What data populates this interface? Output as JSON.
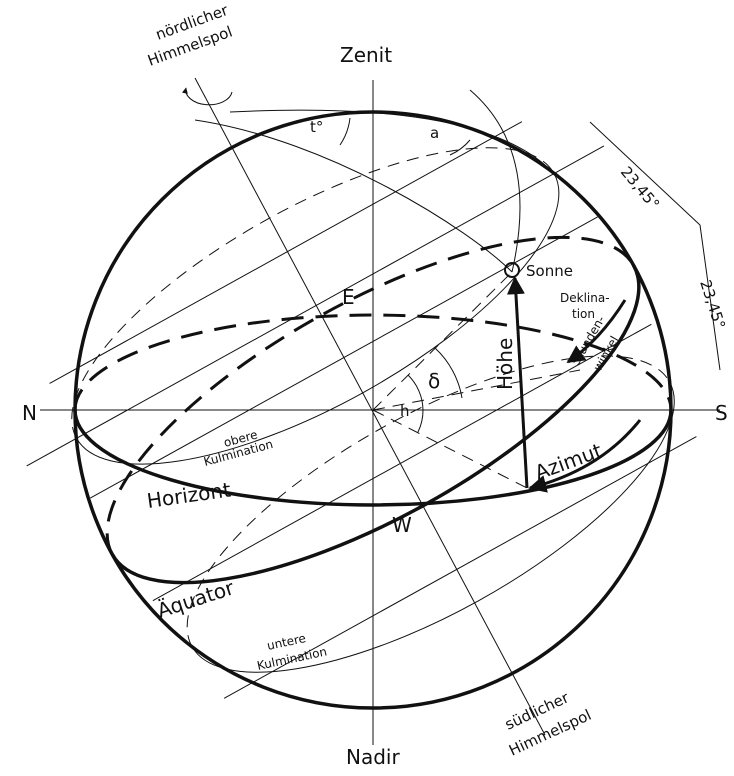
{
  "labels": {
    "north_pole": [
      "nördlicher",
      "Himmelspol"
    ],
    "zenith": "Zenit",
    "hour_angle_t": "t°",
    "arc_a": "a",
    "tilt_upper": "23,45°",
    "tilt_right": "23,45°",
    "sun": "Sonne",
    "declination": [
      "Deklina-",
      "tion"
    ],
    "east": "E",
    "hour_angle": [
      "Stunden-",
      "winkel"
    ],
    "altitude": "Höhe",
    "delta": "δ",
    "north": "N",
    "h": "h",
    "south": "S",
    "upper_culmination": [
      "obere",
      "Kulmination"
    ],
    "azimuth": "Azimut",
    "horizon": "Horizont",
    "west": "W",
    "equator": "Äquator",
    "lower_culmination": [
      "untere",
      "Kulmination"
    ],
    "south_pole": [
      "südlicher",
      "Himmelspol"
    ],
    "nadir": "Nadir"
  }
}
